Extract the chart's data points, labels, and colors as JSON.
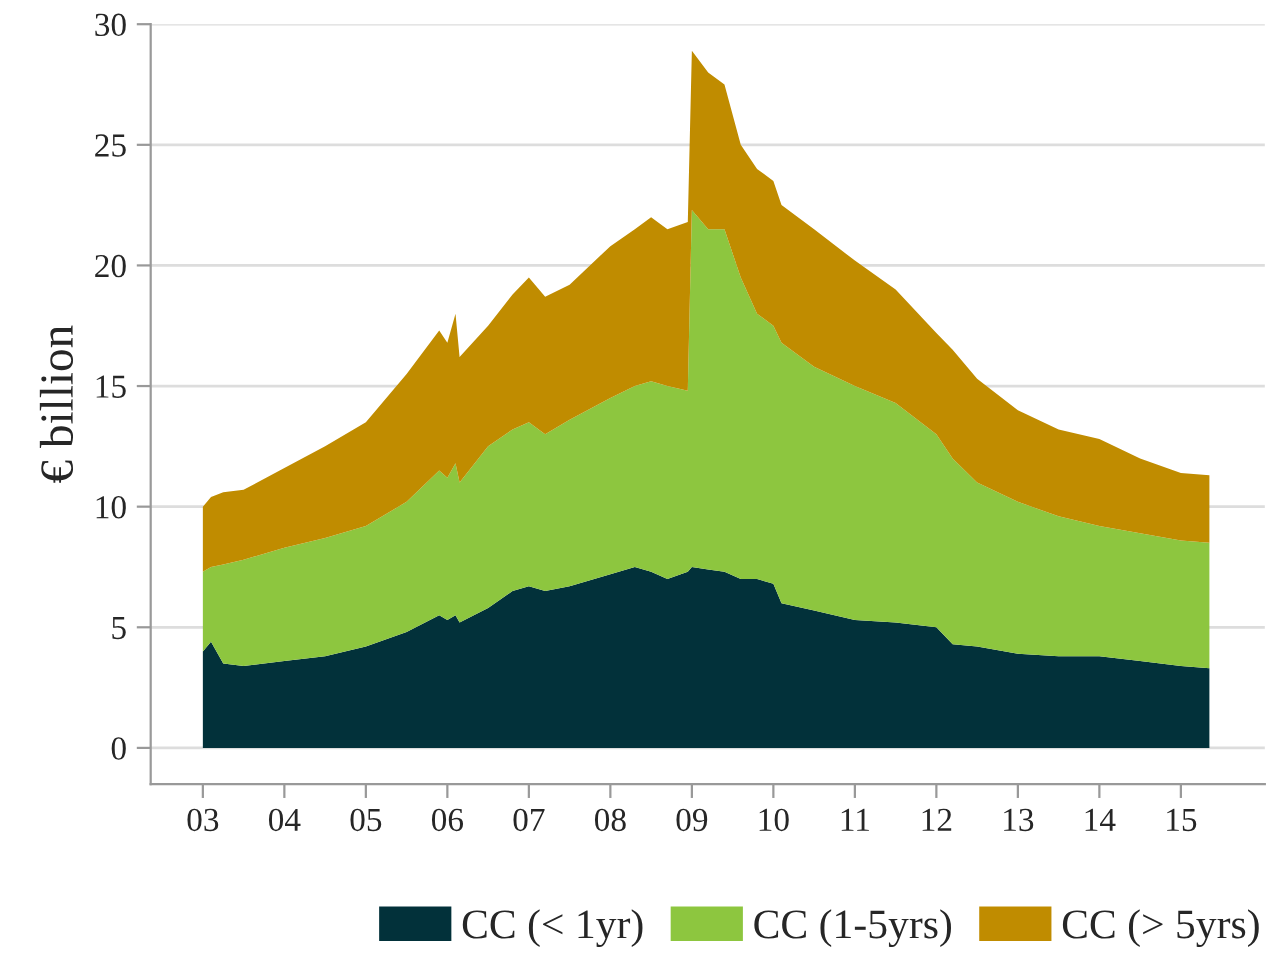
{
  "chart_data": {
    "type": "area",
    "stacked": true,
    "ylabel": "€ billion",
    "x": [
      2003.0,
      2003.1,
      2003.25,
      2003.5,
      2004.0,
      2004.5,
      2005.0,
      2005.5,
      2005.9,
      2006.0,
      2006.1,
      2006.15,
      2006.5,
      2006.8,
      2007.0,
      2007.2,
      2007.5,
      2008.0,
      2008.3,
      2008.5,
      2008.7,
      2008.95,
      2009.0,
      2009.2,
      2009.4,
      2009.6,
      2009.8,
      2010.0,
      2010.1,
      2010.5,
      2011.0,
      2011.5,
      2012.0,
      2012.2,
      2012.5,
      2013.0,
      2013.5,
      2014.0,
      2014.5,
      2015.0,
      2015.35
    ],
    "series": [
      {
        "name": "CC (< 1yr)",
        "color": "#02313a",
        "values": [
          4.0,
          4.4,
          3.5,
          3.4,
          3.6,
          3.8,
          4.2,
          4.8,
          5.5,
          5.3,
          5.5,
          5.2,
          5.8,
          6.5,
          6.7,
          6.5,
          6.7,
          7.2,
          7.5,
          7.3,
          7.0,
          7.3,
          7.5,
          7.4,
          7.3,
          7.0,
          7.0,
          6.8,
          6.0,
          5.7,
          5.3,
          5.2,
          5.0,
          4.3,
          4.2,
          3.9,
          3.8,
          3.8,
          3.6,
          3.4,
          3.3
        ]
      },
      {
        "name": "CC (1-5yrs)",
        "color": "#8dc63f",
        "values": [
          3.3,
          3.1,
          4.1,
          4.4,
          4.7,
          4.9,
          5.0,
          5.4,
          6.0,
          5.9,
          6.3,
          5.8,
          6.7,
          6.7,
          6.8,
          6.5,
          6.9,
          7.3,
          7.5,
          7.9,
          8.0,
          7.5,
          14.8,
          14.1,
          14.2,
          12.5,
          11.0,
          10.7,
          10.8,
          10.1,
          9.7,
          9.1,
          8.0,
          7.7,
          6.8,
          6.3,
          5.8,
          5.4,
          5.3,
          5.2,
          5.2
        ]
      },
      {
        "name": "CC (> 5yrs)",
        "color": "#c08c00",
        "values": [
          2.7,
          2.9,
          3.0,
          2.9,
          3.3,
          3.8,
          4.3,
          5.3,
          5.8,
          5.6,
          6.2,
          5.2,
          5.0,
          5.6,
          6.0,
          5.7,
          5.6,
          6.3,
          6.5,
          6.8,
          6.5,
          7.0,
          6.6,
          6.5,
          6.0,
          5.5,
          6.0,
          6.0,
          5.7,
          5.7,
          5.2,
          4.7,
          4.2,
          4.5,
          4.3,
          3.8,
          3.6,
          3.6,
          3.1,
          2.8,
          2.8
        ]
      }
    ],
    "xlim": [
      2002.36,
      2016.03
    ],
    "xticks": [
      {
        "value": 2003,
        "label": "03"
      },
      {
        "value": 2004,
        "label": "04"
      },
      {
        "value": 2005,
        "label": "05"
      },
      {
        "value": 2006,
        "label": "06"
      },
      {
        "value": 2007,
        "label": "07"
      },
      {
        "value": 2008,
        "label": "08"
      },
      {
        "value": 2009,
        "label": "09"
      },
      {
        "value": 2010,
        "label": "10"
      },
      {
        "value": 2011,
        "label": "11"
      },
      {
        "value": 2012,
        "label": "12"
      },
      {
        "value": 2013,
        "label": "13"
      },
      {
        "value": 2014,
        "label": "14"
      },
      {
        "value": 2015,
        "label": "15"
      }
    ],
    "ylim": [
      -1.5,
      30
    ],
    "yticks": [
      0,
      5,
      10,
      15,
      20,
      25,
      30
    ],
    "grid": "y",
    "legend": "bottom"
  }
}
